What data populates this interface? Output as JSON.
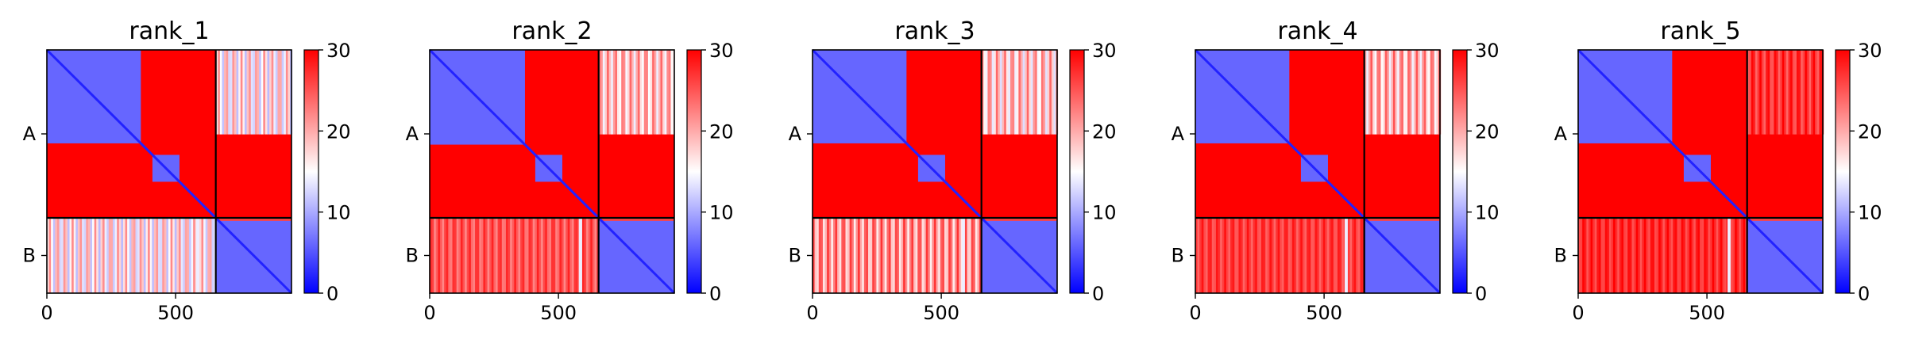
{
  "chart_data": {
    "type": "heatmap",
    "colormap": {
      "low": "#0000ff",
      "mid": "#ffffff",
      "high": "#ff0000",
      "vmin": 0,
      "vmax": 30
    },
    "colorbar_ticks": [
      "0",
      "10",
      "20",
      "30"
    ],
    "chain_boundary": 656,
    "matrix_size": 950,
    "x_ticks": [
      {
        "value": 0,
        "label": "0"
      },
      {
        "value": 500,
        "label": "500"
      }
    ],
    "y_chain_labels": [
      {
        "value": 328,
        "label": "A"
      },
      {
        "value": 803,
        "label": "B"
      }
    ],
    "panels": [
      {
        "title": "rank_1",
        "bg": 30,
        "domain1": [
          0,
          365,
          6
        ],
        "domain2": [
          410,
          515,
          6
        ],
        "offAB": [
          11,
          22
        ],
        "offBA": [
          11,
          22
        ],
        "chainB": 6,
        "stripe": 580
      },
      {
        "title": "rank_2",
        "bg": 30,
        "domain1": [
          0,
          370,
          6
        ],
        "domain2": [
          410,
          515,
          6
        ],
        "offAB": [
          14,
          24
        ],
        "offBA": [
          22,
          28
        ],
        "chainB": 6,
        "stripe": 580
      },
      {
        "title": "rank_3",
        "bg": 30,
        "domain1": [
          0,
          365,
          6
        ],
        "domain2": [
          410,
          515,
          6
        ],
        "offAB": [
          13,
          24
        ],
        "offBA": [
          16,
          27
        ],
        "chainB": 6,
        "stripe": 580
      },
      {
        "title": "rank_4",
        "bg": 30,
        "domain1": [
          0,
          365,
          6
        ],
        "domain2": [
          410,
          515,
          6
        ],
        "offAB": [
          14,
          25
        ],
        "offBA": [
          24,
          29
        ],
        "chainB": 6,
        "stripe": 580
      },
      {
        "title": "rank_5",
        "bg": 30,
        "domain1": [
          0,
          365,
          6
        ],
        "domain2": [
          410,
          515,
          6
        ],
        "offAB": [
          24,
          30
        ],
        "offBA": [
          25,
          30
        ],
        "chainB": 6,
        "stripe": 580
      }
    ]
  }
}
